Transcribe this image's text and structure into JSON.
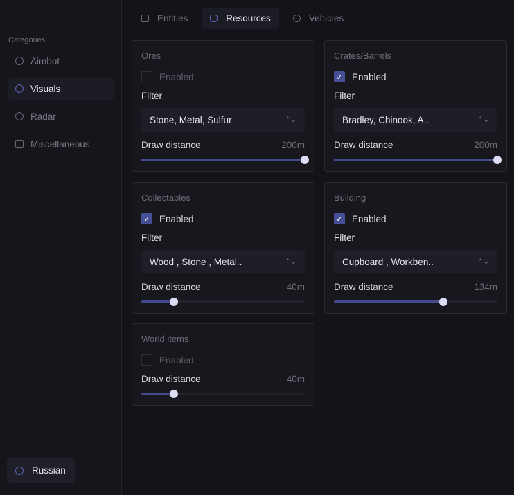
{
  "sidebar": {
    "title": "Categories",
    "items": [
      {
        "label": "Aimbot",
        "icon": "target-icon"
      },
      {
        "label": "Visuals",
        "icon": "eye-icon",
        "active": true
      },
      {
        "label": "Radar",
        "icon": "radar-icon"
      },
      {
        "label": "Miscellaneous",
        "icon": "cube-icon"
      }
    ],
    "language": "Russian"
  },
  "tabs": [
    {
      "label": "Entities"
    },
    {
      "label": "Resources",
      "active": true
    },
    {
      "label": "Vehicles"
    }
  ],
  "accent": "#474f96",
  "cards": [
    {
      "title": "Ores",
      "enabled": false,
      "enabled_label": "Enabled",
      "filter_label": "Filter",
      "filter": "Stone, Metal, Sulfur",
      "distance_label": "Draw distance",
      "distance": "200m",
      "level": 1.0
    },
    {
      "title": "Crates/Barrels",
      "enabled": true,
      "enabled_label": "Enabled",
      "filter_label": "Filter",
      "filter": "Bradley, Chinook, A..",
      "distance_label": "Draw distance",
      "distance": "200m",
      "level": 1.0
    },
    {
      "title": "Collectables",
      "enabled": true,
      "enabled_label": "Enabled",
      "filter_label": "Filter",
      "filter": "Wood , Stone , Metal..",
      "distance_label": "Draw distance",
      "distance": "40m",
      "level": 0.2
    },
    {
      "title": "Building",
      "enabled": true,
      "enabled_label": "Enabled",
      "filter_label": "Filter",
      "filter": "Cupboard , Workben..",
      "distance_label": "Draw distance",
      "distance": "134m",
      "level": 0.67
    },
    {
      "title": "World items",
      "enabled": false,
      "enabled_label": "Enabled",
      "distance_label": "Draw distance",
      "distance": "40m",
      "level": 0.2
    }
  ]
}
